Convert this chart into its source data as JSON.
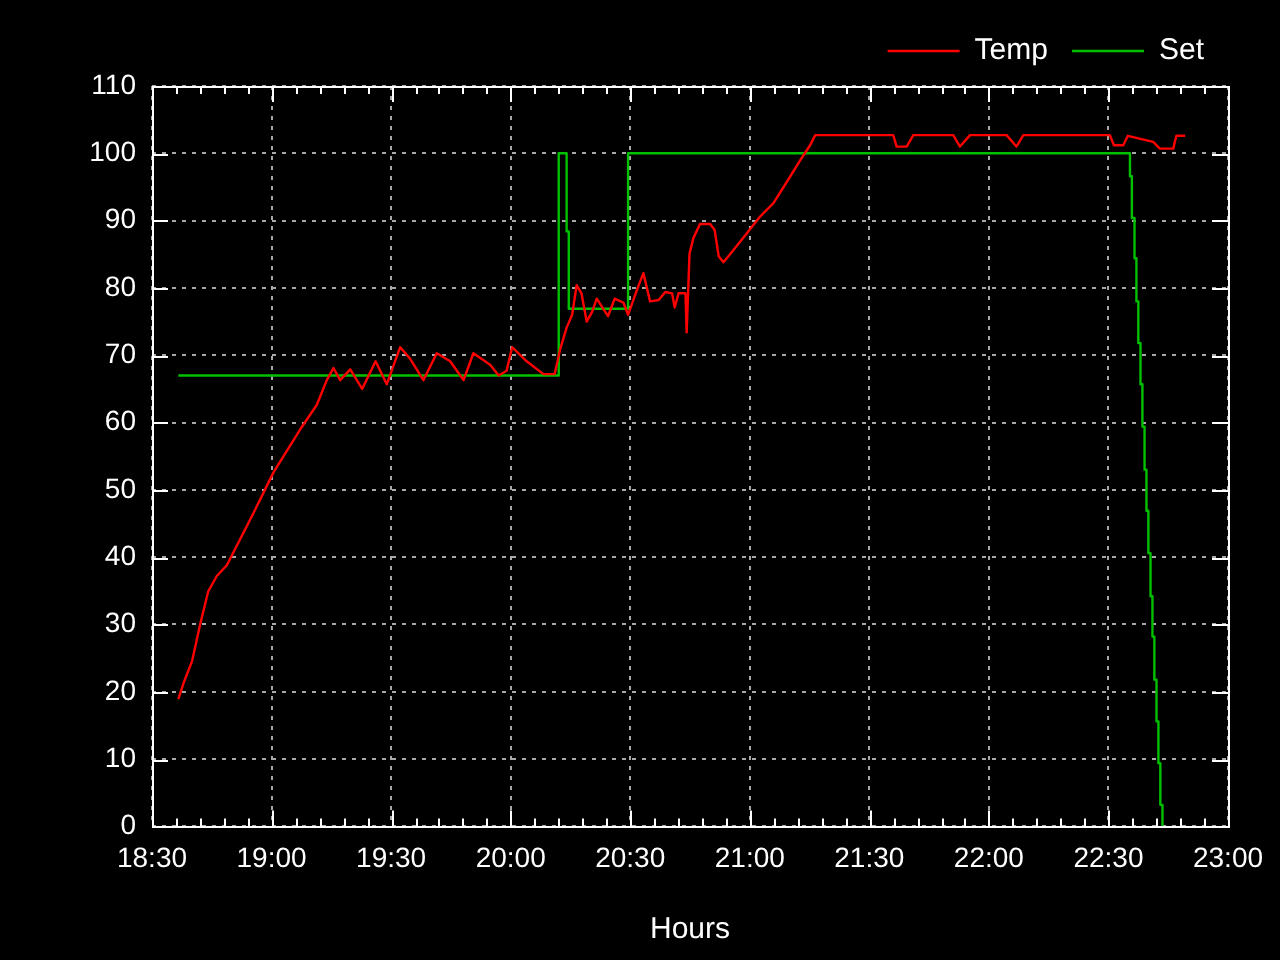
{
  "chart_data": {
    "type": "line",
    "xlabel": "Hours",
    "series": [
      {
        "name": "Temp",
        "color": "#ff0000",
        "x": [
          18.61,
          18.632,
          18.668,
          18.702,
          18.735,
          18.771,
          18.813,
          18.925,
          19.008,
          19.12,
          19.189,
          19.231,
          19.259,
          19.287,
          19.329,
          19.379,
          19.435,
          19.482,
          19.538,
          19.579,
          19.635,
          19.691,
          19.747,
          19.803,
          19.844,
          19.914,
          19.95,
          19.983,
          20.006,
          20.067,
          20.137,
          20.184,
          20.207,
          20.234,
          20.257,
          20.276,
          20.296,
          20.318,
          20.34,
          20.36,
          20.38,
          20.407,
          20.435,
          20.472,
          20.491,
          20.527,
          20.555,
          20.583,
          20.619,
          20.647,
          20.675,
          20.686,
          20.702,
          20.731,
          20.736,
          20.748,
          20.764,
          20.792,
          20.834,
          20.853,
          20.87,
          20.89,
          20.931,
          20.987,
          21.043,
          21.099,
          21.154,
          21.21,
          21.252,
          21.274,
          21.6,
          21.614,
          21.656,
          21.684,
          21.851,
          21.879,
          21.921,
          22.074,
          22.115,
          22.144,
          22.506,
          22.523,
          22.562,
          22.581,
          22.687,
          22.715,
          22.771,
          22.784,
          22.821
        ],
        "values": [
          18.9,
          21.3,
          24.6,
          30.1,
          34.9,
          37.2,
          38.8,
          46.6,
          52.6,
          59,
          62.6,
          66.3,
          68.1,
          66.3,
          67.9,
          65,
          69.1,
          65.7,
          71.2,
          69.5,
          66.3,
          70.3,
          69.1,
          66.3,
          70.3,
          68.6,
          67,
          67.7,
          71.2,
          69.1,
          67.2,
          67.2,
          70.9,
          74.1,
          76,
          80.4,
          79.2,
          75,
          76.4,
          78.4,
          77.3,
          75.8,
          78.4,
          77.8,
          76,
          79.6,
          82.2,
          78,
          78.2,
          79.4,
          79.2,
          77.1,
          79.2,
          79.2,
          73.4,
          85.1,
          87.4,
          89.5,
          89.5,
          88.6,
          84.7,
          83.8,
          85.6,
          88.1,
          90.6,
          92.6,
          95.7,
          98.9,
          101.2,
          102.7,
          102.7,
          101,
          101,
          102.7,
          102.7,
          101,
          102.7,
          102.7,
          101,
          102.7,
          102.7,
          101.2,
          101.2,
          102.6,
          101.7,
          100.7,
          100.7,
          102.6,
          102.6
        ]
      },
      {
        "name": "Set",
        "type": "step",
        "color": "#00c000",
        "x": [
          18.61,
          20.201,
          20.234,
          20.243,
          20.491,
          22.59,
          22.598,
          22.609,
          22.617,
          22.625,
          22.634,
          22.642,
          22.651,
          22.659,
          22.667,
          22.676,
          22.684,
          22.692,
          22.701,
          22.709,
          22.717,
          22.726
        ],
        "values": [
          67,
          100,
          88.4,
          76.9,
          100,
          96.6,
          90.4,
          84.4,
          78,
          71.8,
          65.7,
          59.4,
          53,
          46.9,
          40.6,
          34.2,
          28.2,
          21.8,
          15.6,
          9.4,
          3.2,
          0
        ]
      }
    ],
    "xlim": [
      18.5,
      23
    ],
    "xticks": [
      {
        "value": 18.5,
        "label": "18:30"
      },
      {
        "value": 18.6,
        "label": null
      },
      {
        "value": 18.7,
        "label": null
      },
      {
        "value": 18.8,
        "label": null
      },
      {
        "value": 18.9,
        "label": null
      },
      {
        "value": 19,
        "label": "19:00"
      },
      {
        "value": 19.1,
        "label": null
      },
      {
        "value": 19.2,
        "label": null
      },
      {
        "value": 19.3,
        "label": null
      },
      {
        "value": 19.4,
        "label": null
      },
      {
        "value": 19.5,
        "label": "19:30"
      },
      {
        "value": 19.6,
        "label": null
      },
      {
        "value": 19.7,
        "label": null
      },
      {
        "value": 19.8,
        "label": null
      },
      {
        "value": 19.9,
        "label": null
      },
      {
        "value": 20,
        "label": "20:00"
      },
      {
        "value": 20.1,
        "label": null
      },
      {
        "value": 20.2,
        "label": null
      },
      {
        "value": 20.3,
        "label": null
      },
      {
        "value": 20.4,
        "label": null
      },
      {
        "value": 20.5,
        "label": "20:30"
      },
      {
        "value": 20.6,
        "label": null
      },
      {
        "value": 20.7,
        "label": null
      },
      {
        "value": 20.8,
        "label": null
      },
      {
        "value": 20.9,
        "label": null
      },
      {
        "value": 21,
        "label": "21:00"
      },
      {
        "value": 21.1,
        "label": null
      },
      {
        "value": 21.2,
        "label": null
      },
      {
        "value": 21.3,
        "label": null
      },
      {
        "value": 21.4,
        "label": null
      },
      {
        "value": 21.5,
        "label": "21:30"
      },
      {
        "value": 21.6,
        "label": null
      },
      {
        "value": 21.7,
        "label": null
      },
      {
        "value": 21.8,
        "label": null
      },
      {
        "value": 21.9,
        "label": null
      },
      {
        "value": 22,
        "label": "22:00"
      },
      {
        "value": 22.1,
        "label": null
      },
      {
        "value": 22.2,
        "label": null
      },
      {
        "value": 22.3,
        "label": null
      },
      {
        "value": 22.4,
        "label": null
      },
      {
        "value": 22.5,
        "label": "22:30"
      },
      {
        "value": 22.6,
        "label": null
      },
      {
        "value": 22.7,
        "label": null
      },
      {
        "value": 22.8,
        "label": null
      },
      {
        "value": 22.9,
        "label": null
      },
      {
        "value": 23,
        "label": "23:00"
      }
    ],
    "ylim": [
      0,
      110
    ],
    "yticks": [
      0,
      10,
      20,
      30,
      40,
      50,
      60,
      70,
      80,
      90,
      100,
      110
    ],
    "grid": true,
    "legend": "top right"
  }
}
